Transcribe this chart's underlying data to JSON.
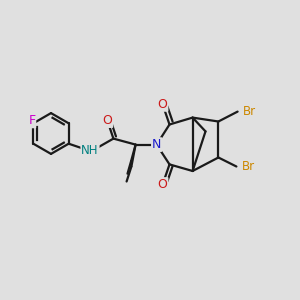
{
  "background_color": "#e0e0e0",
  "bond_color": "#1a1a1a",
  "bond_lw": 1.6,
  "colors": {
    "N": "#1a1acc",
    "O": "#cc1a1a",
    "F": "#cc00cc",
    "Br": "#cc8800",
    "C": "#1a1a1a",
    "NH": "#008080"
  },
  "figsize": [
    3.0,
    3.0
  ],
  "dpi": 100,
  "xlim": [
    0,
    10
  ],
  "ylim": [
    0,
    10
  ]
}
